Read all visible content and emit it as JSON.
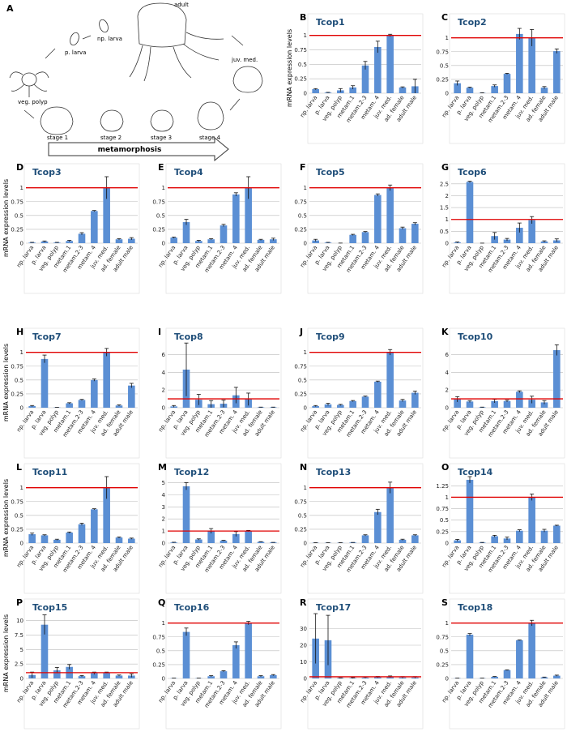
{
  "diagram": {
    "panel": "A",
    "adult": "adult",
    "np_larva": "np. larva",
    "p_larva": "p. larva",
    "juv_med": "juv. med.",
    "veg_polyp": "veg. polyp",
    "stage1": "stage 1",
    "stage2": "stage 2",
    "stage3": "stage 3",
    "stage4": "stage 4",
    "arrow": "metamorphosis"
  },
  "chart_data": [
    {
      "type": "bar",
      "panel": "B",
      "title": "Tcop1",
      "ylabel": "mRNA expression levels",
      "categories": [
        "np. larva",
        "p. larva",
        "veg. polyp",
        "metam.1",
        "metam.2-3",
        "metam. 4",
        "juv. med.",
        "ad. female",
        "adult male"
      ],
      "values": [
        0.07,
        0.01,
        0.05,
        0.1,
        0.48,
        0.8,
        1.0,
        0.1,
        0.12
      ],
      "errors": [
        0.01,
        0.005,
        0.03,
        0.03,
        0.07,
        0.1,
        0.02,
        0.01,
        0.12
      ],
      "color": "#5b8fd4",
      "ylim": [
        0,
        1.15
      ],
      "yticks": [
        0,
        0.25,
        0.5,
        0.75,
        1
      ],
      "reference_line": 1,
      "reference_color": "#e00000",
      "grid": true
    },
    {
      "type": "bar",
      "panel": "C",
      "title": "Tcop2",
      "categories": [
        "np. larva",
        "p. larva",
        "veg. polyp",
        "metam.1",
        "metam.2-3",
        "metam. 4",
        "juv. med.",
        "ad. female",
        "adult male"
      ],
      "values": [
        0.18,
        0.1,
        0.005,
        0.13,
        0.35,
        1.07,
        1.0,
        0.1,
        0.76
      ],
      "errors": [
        0.04,
        0.01,
        0.003,
        0.02,
        0.01,
        0.1,
        0.15,
        0.02,
        0.04
      ],
      "color": "#5b8fd4",
      "ylim": [
        0,
        1.2
      ],
      "yticks": [
        0,
        0.25,
        0.5,
        0.75,
        1
      ],
      "reference_line": 1,
      "reference_color": "#e00000",
      "grid": true
    },
    {
      "type": "bar",
      "panel": "D",
      "title": "Tcop3",
      "ylabel": "mRNA expression levels",
      "categories": [
        "np. larva",
        "p. larva",
        "veg. polyp",
        "metam.1",
        "metam.2-3",
        "metam. 4",
        "juv. med.",
        "ad. female",
        "adult male"
      ],
      "values": [
        0.01,
        0.03,
        0.01,
        0.04,
        0.17,
        0.58,
        1.0,
        0.07,
        0.08
      ],
      "errors": [
        0.005,
        0.01,
        0.005,
        0.01,
        0.02,
        0.01,
        0.2,
        0.01,
        0.02
      ],
      "color": "#5b8fd4",
      "ylim": [
        0,
        1.2
      ],
      "yticks": [
        0,
        0.25,
        0.5,
        0.75,
        1
      ],
      "reference_line": 1,
      "reference_color": "#e00000",
      "grid": true
    },
    {
      "type": "bar",
      "panel": "E",
      "title": "Tcop4",
      "categories": [
        "np. larva",
        "p. larva",
        "veg. polyp",
        "metam.1",
        "metam.2-3",
        "metam. 4",
        "juv. med.",
        "ad. female",
        "adult male"
      ],
      "values": [
        0.1,
        0.38,
        0.04,
        0.07,
        0.32,
        0.88,
        1.0,
        0.06,
        0.07
      ],
      "errors": [
        0.01,
        0.05,
        0.01,
        0.01,
        0.02,
        0.03,
        0.2,
        0.01,
        0.02
      ],
      "color": "#5b8fd4",
      "ylim": [
        0,
        1.2
      ],
      "yticks": [
        0,
        0.25,
        0.5,
        0.75,
        1
      ],
      "reference_line": 1,
      "reference_color": "#e00000",
      "grid": true
    },
    {
      "type": "bar",
      "panel": "F",
      "title": "Tcop5",
      "categories": [
        "np. larva",
        "p. larva",
        "veg. polyp",
        "metam.1",
        "metam.2-3",
        "metam. 4",
        "juv. med.",
        "ad. female",
        "adult male"
      ],
      "values": [
        0.05,
        0.01,
        0.0,
        0.15,
        0.2,
        0.87,
        1.0,
        0.27,
        0.35
      ],
      "errors": [
        0.02,
        0.005,
        0.002,
        0.01,
        0.01,
        0.02,
        0.05,
        0.02,
        0.02
      ],
      "color": "#5b8fd4",
      "ylim": [
        0,
        1.2
      ],
      "yticks": [
        0,
        0.25,
        0.5,
        0.75,
        1
      ],
      "reference_line": 1,
      "reference_color": "#e00000",
      "grid": true
    },
    {
      "type": "bar",
      "panel": "G",
      "title": "Tcop6",
      "categories": [
        "np. larva",
        "p. larva",
        "veg. polyp",
        "metam.1",
        "metam.2-3",
        "metam. 4",
        "juv. med.",
        "ad. female",
        "adult male"
      ],
      "values": [
        0.03,
        2.58,
        0.0,
        0.3,
        0.15,
        0.65,
        0.97,
        0.07,
        0.12
      ],
      "errors": [
        0.02,
        0.03,
        0.002,
        0.15,
        0.05,
        0.2,
        0.15,
        0.03,
        0.06
      ],
      "color": "#5b8fd4",
      "ylim": [
        0,
        2.8
      ],
      "yticks": [
        0,
        0.5,
        1,
        1.5,
        2,
        2.5
      ],
      "reference_line": 1,
      "reference_color": "#e00000",
      "grid": true
    },
    {
      "type": "bar",
      "panel": "H",
      "title": "Tcop7",
      "ylabel": "mRNA expression levels",
      "categories": [
        "np. larva",
        "p. larva",
        "veg. polyp",
        "metam.1",
        "metam.2-3",
        "metam. 4",
        "juv. med.",
        "ad. female",
        "adult male"
      ],
      "values": [
        0.03,
        0.88,
        0.005,
        0.08,
        0.14,
        0.5,
        1.0,
        0.04,
        0.4
      ],
      "errors": [
        0.01,
        0.07,
        0.002,
        0.01,
        0.01,
        0.02,
        0.07,
        0.01,
        0.04
      ],
      "color": "#5b8fd4",
      "ylim": [
        0,
        1.2
      ],
      "yticks": [
        0,
        0.25,
        0.5,
        0.75,
        1
      ],
      "reference_line": 1,
      "reference_color": "#e00000",
      "grid": true
    },
    {
      "type": "bar",
      "panel": "I",
      "title": "Tcop8",
      "categories": [
        "np. larva",
        "p. larva",
        "veg. polyp",
        "metam.1",
        "metam.2-3",
        "metam. 4",
        "juv. med.",
        "ad. female",
        "adult male"
      ],
      "values": [
        0.15,
        4.3,
        0.9,
        0.4,
        0.45,
        1.4,
        0.95,
        0.05,
        0.05
      ],
      "errors": [
        0.1,
        3.0,
        0.6,
        0.4,
        0.4,
        0.9,
        0.7,
        0.02,
        0.02
      ],
      "color": "#5b8fd4",
      "ylim": [
        0,
        7.5
      ],
      "yticks": [
        0,
        2,
        4,
        6
      ],
      "reference_line": 1,
      "reference_color": "#e00000",
      "grid": true
    },
    {
      "type": "bar",
      "panel": "J",
      "title": "Tcop9",
      "categories": [
        "np. larva",
        "p. larva",
        "veg. polyp",
        "metam.1",
        "metam.2-3",
        "metam. 4",
        "juv. med.",
        "ad. female",
        "adult male"
      ],
      "values": [
        0.03,
        0.06,
        0.05,
        0.12,
        0.2,
        0.47,
        1.0,
        0.13,
        0.27
      ],
      "errors": [
        0.01,
        0.02,
        0.01,
        0.01,
        0.01,
        0.01,
        0.05,
        0.02,
        0.03
      ],
      "color": "#5b8fd4",
      "ylim": [
        0,
        1.2
      ],
      "yticks": [
        0,
        0.25,
        0.5,
        0.75,
        1
      ],
      "reference_line": 1,
      "reference_color": "#e00000",
      "grid": true
    },
    {
      "type": "bar",
      "panel": "K",
      "title": "Tcop10",
      "categories": [
        "np. larva",
        "p. larva",
        "veg. polyp",
        "metam.1",
        "metam.2-3",
        "metam. 4",
        "juv. med.",
        "ad. female",
        "adult male"
      ],
      "values": [
        0.95,
        0.7,
        0.05,
        0.75,
        0.75,
        1.8,
        0.9,
        0.6,
        6.5
      ],
      "errors": [
        0.3,
        0.1,
        0.02,
        0.2,
        0.1,
        0.1,
        0.4,
        0.2,
        0.6
      ],
      "color": "#5b8fd4",
      "ylim": [
        0,
        7.5
      ],
      "yticks": [
        0,
        2,
        4,
        6
      ],
      "reference_line": 1,
      "reference_color": "#e00000",
      "grid": true
    },
    {
      "type": "bar",
      "panel": "L",
      "title": "Tcop11",
      "ylabel": "mRNA expression levels",
      "categories": [
        "np. larva",
        "p. larva",
        "veg. polyp",
        "metam.1",
        "metam.2-3",
        "metam. 4",
        "juv. med.",
        "ad. female",
        "adult male"
      ],
      "values": [
        0.16,
        0.14,
        0.06,
        0.19,
        0.34,
        0.61,
        1.0,
        0.1,
        0.08
      ],
      "errors": [
        0.02,
        0.01,
        0.01,
        0.01,
        0.02,
        0.01,
        0.2,
        0.01,
        0.01
      ],
      "color": "#5b8fd4",
      "ylim": [
        0,
        1.2
      ],
      "yticks": [
        0,
        0.25,
        0.5,
        0.75,
        1
      ],
      "reference_line": 1,
      "reference_color": "#e00000",
      "grid": true
    },
    {
      "type": "bar",
      "panel": "M",
      "title": "Tcop12",
      "categories": [
        "np. larva",
        "p. larva",
        "veg. polyp",
        "metam.1",
        "metam.2-3",
        "metam. 4",
        "juv. med.",
        "ad. female",
        "adult male"
      ],
      "values": [
        0.05,
        4.7,
        0.3,
        1.0,
        0.2,
        0.75,
        1.0,
        0.1,
        0.05
      ],
      "errors": [
        0.02,
        0.3,
        0.05,
        0.2,
        0.03,
        0.2,
        0.05,
        0.02,
        0.01
      ],
      "color": "#5b8fd4",
      "ylim": [
        0,
        5.5
      ],
      "yticks": [
        0,
        1,
        2,
        3,
        4,
        5
      ],
      "reference_line": 1,
      "reference_color": "#e00000",
      "grid": true
    },
    {
      "type": "bar",
      "panel": "N",
      "title": "Tcop13",
      "categories": [
        "np. larva",
        "p. larva",
        "veg. polyp",
        "metam.1",
        "metam.2-3",
        "metam. 4",
        "juv. med.",
        "ad. female",
        "adult male"
      ],
      "values": [
        0.005,
        0.005,
        0.005,
        0.01,
        0.14,
        0.56,
        1.0,
        0.06,
        0.14
      ],
      "errors": [
        0.002,
        0.002,
        0.002,
        0.002,
        0.01,
        0.05,
        0.1,
        0.01,
        0.01
      ],
      "color": "#5b8fd4",
      "ylim": [
        0,
        1.2
      ],
      "yticks": [
        0,
        0.25,
        0.5,
        0.75,
        1
      ],
      "reference_line": 1,
      "reference_color": "#e00000",
      "grid": true
    },
    {
      "type": "bar",
      "panel": "O",
      "title": "Tcop14",
      "categories": [
        "np. larva",
        "p. larva",
        "veg. polyp",
        "metam.1",
        "metam.2-3",
        "metam. 4",
        "juv. med.",
        "ad. female",
        "adult male"
      ],
      "values": [
        0.06,
        1.38,
        0.01,
        0.15,
        0.1,
        0.27,
        1.0,
        0.27,
        0.38
      ],
      "errors": [
        0.02,
        0.07,
        0.005,
        0.02,
        0.03,
        0.02,
        0.07,
        0.03,
        0.01
      ],
      "color": "#5b8fd4",
      "ylim": [
        0,
        1.45
      ],
      "yticks": [
        0,
        0.25,
        0.5,
        0.75,
        1,
        1.25
      ],
      "reference_line": 1,
      "reference_color": "#e00000",
      "grid": true
    },
    {
      "type": "bar",
      "panel": "P",
      "title": "Tcop15",
      "ylabel": "mRNA expression levels",
      "categories": [
        "np. larva",
        "p. larva",
        "veg. polyp",
        "metam.1",
        "metam.2-3",
        "metam. 4",
        "juv. med.",
        "ad. female",
        "adult male"
      ],
      "values": [
        0.6,
        9.3,
        1.4,
        2.0,
        0.4,
        0.9,
        1.0,
        0.5,
        0.5
      ],
      "errors": [
        0.5,
        1.7,
        0.5,
        0.4,
        0.1,
        0.2,
        0.1,
        0.1,
        0.3
      ],
      "color": "#5b8fd4",
      "ylim": [
        0,
        11.5
      ],
      "yticks": [
        0,
        2.5,
        5,
        7.5,
        10
      ],
      "reference_line": 1,
      "reference_color": "#e00000",
      "grid": true
    },
    {
      "type": "bar",
      "panel": "Q",
      "title": "Tcop16",
      "categories": [
        "np. larva",
        "p. larva",
        "veg. polyp",
        "metam.1",
        "metam.2-3",
        "metam. 4",
        "juv. med.",
        "ad. female",
        "adult male"
      ],
      "values": [
        0.005,
        0.84,
        0.005,
        0.04,
        0.13,
        0.6,
        1.0,
        0.04,
        0.06
      ],
      "errors": [
        0.002,
        0.07,
        0.002,
        0.01,
        0.01,
        0.06,
        0.03,
        0.01,
        0.01
      ],
      "color": "#5b8fd4",
      "ylim": [
        0,
        1.2
      ],
      "yticks": [
        0,
        0.25,
        0.5,
        0.75,
        1
      ],
      "reference_line": 1,
      "reference_color": "#e00000",
      "grid": true
    },
    {
      "type": "bar",
      "panel": "R",
      "title": "Tcop17",
      "categories": [
        "np. larva",
        "p. larva",
        "veg. polyp",
        "metam.1",
        "metam.2-3",
        "metam. 4",
        "juv. med.",
        "ad. female",
        "adult male"
      ],
      "values": [
        24,
        23,
        0.3,
        0.3,
        0.5,
        0.8,
        1.0,
        0.6,
        0.6
      ],
      "errors": [
        15,
        15,
        0.1,
        0.2,
        0.3,
        0.4,
        0.5,
        0.5,
        0.5
      ],
      "color": "#5b8fd4",
      "ylim": [
        0,
        40
      ],
      "yticks": [
        0,
        10,
        20,
        30
      ],
      "reference_line": 1,
      "reference_color": "#e00000",
      "grid": true
    },
    {
      "type": "bar",
      "panel": "S",
      "title": "Tcop18",
      "categories": [
        "np. larva",
        "p. larva",
        "veg. polyp",
        "metam.1",
        "metam.2-3",
        "metam. 4",
        "juv. med.",
        "ad. female",
        "adult male"
      ],
      "values": [
        0.005,
        0.79,
        0.005,
        0.03,
        0.15,
        0.69,
        1.0,
        0.02,
        0.05
      ],
      "errors": [
        0.002,
        0.02,
        0.002,
        0.005,
        0.005,
        0.005,
        0.05,
        0.005,
        0.01
      ],
      "color": "#5b8fd4",
      "ylim": [
        0,
        1.2
      ],
      "yticks": [
        0,
        0.25,
        0.5,
        0.75,
        1
      ],
      "reference_line": 1,
      "reference_color": "#e00000",
      "grid": true
    }
  ]
}
